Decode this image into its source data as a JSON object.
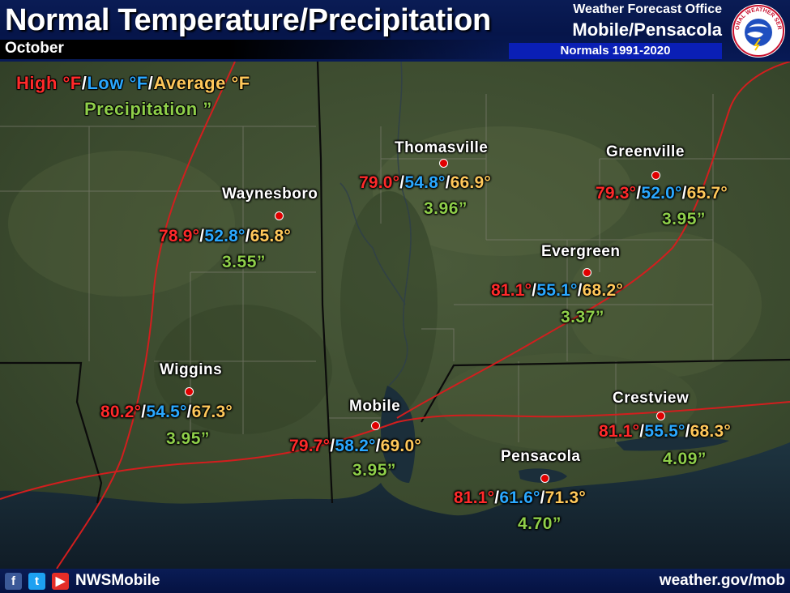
{
  "header": {
    "title": "Normal Temperature/Precipitation",
    "month": "October",
    "office_line1": "Weather Forecast Office",
    "office_line2": "Mobile/Pensacola",
    "normals_period": "Normals 1991-2020",
    "logo_text": "NATIONAL WEATHER SERVICE"
  },
  "legend": {
    "high": "High °F",
    "low": "Low °F",
    "average": "Average °F",
    "sep": "/",
    "precip": "Precipitation ”"
  },
  "colors": {
    "high": "#ff2a2a",
    "low": "#2aa8ff",
    "average": "#ffc85a",
    "precip": "#8fcf4a",
    "header_bg": "#0a1c55",
    "normals_box": "#0a1fb5"
  },
  "stations": [
    {
      "name": "Thomasville",
      "high": "79.0°",
      "low": "54.8°",
      "avg": "66.9°",
      "precip": "3.96”"
    },
    {
      "name": "Greenville",
      "high": "79.3°",
      "low": "52.0°",
      "avg": "65.7°",
      "precip": "3.95”"
    },
    {
      "name": "Waynesboro",
      "high": "78.9°",
      "low": "52.8°",
      "avg": "65.8°",
      "precip": "3.55”"
    },
    {
      "name": "Evergreen",
      "high": "81.1°",
      "low": "55.1°",
      "avg": "68.2°",
      "precip": "3.37”"
    },
    {
      "name": "Wiggins",
      "high": "80.2°",
      "low": "54.5°",
      "avg": "67.3°",
      "precip": "3.95”"
    },
    {
      "name": "Mobile",
      "high": "79.7°",
      "low": "58.2°",
      "avg": "69.0°",
      "precip": "3.95”"
    },
    {
      "name": "Pensacola",
      "high": "81.1°",
      "low": "61.6°",
      "avg": "71.3°",
      "precip": "4.70”"
    },
    {
      "name": "Crestview",
      "high": "81.1°",
      "low": "55.5°",
      "avg": "68.3°",
      "precip": "4.09”"
    }
  ],
  "footer": {
    "facebook_icon": "f",
    "twitter_icon": "t",
    "youtube_icon": "▶",
    "handle": "NWSMobile",
    "website": "weather.gov/mob"
  }
}
